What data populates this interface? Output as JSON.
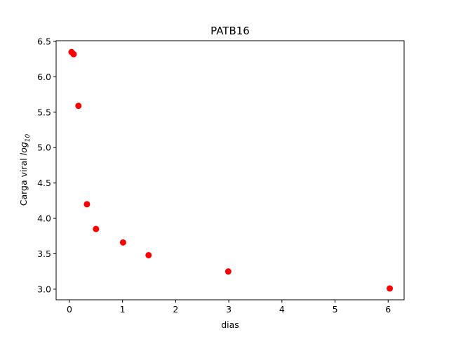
{
  "chart_data": {
    "type": "scatter",
    "title": "PATB16",
    "xlabel": "dias",
    "ylabel_main": "Carga viral ",
    "ylabel_math": "log",
    "ylabel_sub": "10",
    "xlim": [
      -0.25,
      6.3
    ],
    "ylim": [
      2.85,
      6.51
    ],
    "x_ticks": [
      0,
      1,
      2,
      3,
      4,
      5,
      6
    ],
    "x_tick_labels": [
      "0",
      "1",
      "2",
      "3",
      "4",
      "5",
      "6"
    ],
    "y_ticks": [
      3.0,
      3.5,
      4.0,
      4.5,
      5.0,
      5.5,
      6.0,
      6.5
    ],
    "y_tick_labels": [
      "3.0",
      "3.5",
      "4.0",
      "4.5",
      "5.0",
      "5.5",
      "6.0",
      "6.5"
    ],
    "grid": false,
    "marker_color": "#ff0000",
    "points": [
      {
        "x": 0.04,
        "y": 6.35
      },
      {
        "x": 0.08,
        "y": 6.32
      },
      {
        "x": 0.17,
        "y": 5.59
      },
      {
        "x": 0.33,
        "y": 4.2
      },
      {
        "x": 0.5,
        "y": 3.85
      },
      {
        "x": 1.01,
        "y": 3.66
      },
      {
        "x": 1.49,
        "y": 3.48
      },
      {
        "x": 2.99,
        "y": 3.25
      },
      {
        "x": 6.03,
        "y": 3.01
      }
    ]
  }
}
